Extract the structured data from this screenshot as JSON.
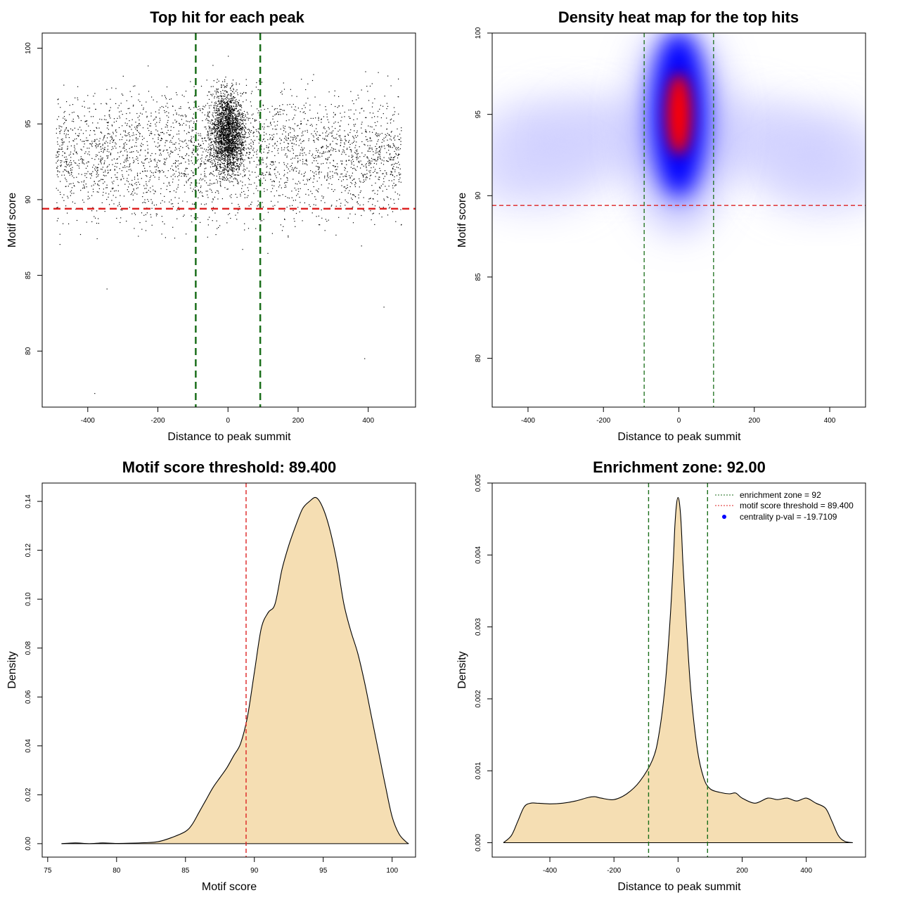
{
  "chart_data": [
    {
      "type": "scatter",
      "title": "Top hit for each peak",
      "xlabel": "Distance to peak summit",
      "ylabel": "Motif score",
      "xlim": [
        -530,
        535
      ],
      "ylim": [
        76.3,
        101.0
      ],
      "xticks": [
        -400,
        -200,
        0,
        200,
        400
      ],
      "yticks": [
        80,
        85,
        90,
        95,
        100
      ],
      "xtick_labels": [
        "-400",
        "-200",
        "0",
        "200",
        "400"
      ],
      "ytick_labels": [
        "80",
        "85",
        "90",
        "95",
        "100"
      ],
      "hlines": [
        {
          "y": 89.4,
          "color": "#dd2222",
          "style": "dashed"
        }
      ],
      "vlines": [
        {
          "x": -92,
          "color": "#1a6e1a",
          "style": "dashed"
        },
        {
          "x": 92,
          "color": "#1a6e1a",
          "style": "dashed"
        }
      ],
      "points_summary": {
        "x_range": [
          -490,
          495
        ],
        "score_range": [
          77.2,
          100
        ],
        "central_band": [
          -92,
          92
        ],
        "mode_score": 94.5,
        "outliers": [
          {
            "x": -380,
            "y": 77.2
          },
          {
            "x": 390,
            "y": 79.5
          },
          {
            "x": 445,
            "y": 82.9
          },
          {
            "x": -345,
            "y": 84.1
          }
        ]
      }
    },
    {
      "type": "heatmap",
      "title": "Density heat map for the top hits",
      "xlabel": "Distance to peak summit",
      "ylabel": "Motif score",
      "xlim": [
        -495,
        495
      ],
      "ylim": [
        77.0,
        100.0
      ],
      "xticks": [
        -400,
        -200,
        0,
        200,
        400
      ],
      "yticks": [
        80,
        85,
        90,
        95,
        100
      ],
      "xtick_labels": [
        "-400",
        "-200",
        "0",
        "200",
        "400"
      ],
      "ytick_labels": [
        "80",
        "85",
        "90",
        "95",
        "100"
      ],
      "hlines": [
        {
          "y": 89.4,
          "color": "#dd2222",
          "style": "dashed"
        }
      ],
      "vlines": [
        {
          "x": -92,
          "color": "#1a6e1a",
          "style": "dashed"
        },
        {
          "x": 92,
          "color": "#1a6e1a",
          "style": "dashed"
        }
      ],
      "colors": [
        "#ffffff",
        "#0000ff",
        "#ff0000"
      ],
      "peak": {
        "x": 0,
        "y": 95.0
      }
    },
    {
      "type": "area",
      "title": "Motif score threshold: 89.400",
      "xlabel": "Motif score",
      "ylabel": "Density",
      "xlim": [
        74.6,
        101.7
      ],
      "ylim": [
        -0.0055,
        0.1475
      ],
      "xticks": [
        75,
        80,
        85,
        90,
        95,
        100
      ],
      "yticks": [
        0.0,
        0.02,
        0.04,
        0.06,
        0.08,
        0.1,
        0.12,
        0.14
      ],
      "xtick_labels": [
        "75",
        "80",
        "85",
        "90",
        "95",
        "100"
      ],
      "ytick_labels": [
        "0.00",
        "0.02",
        "0.04",
        "0.06",
        "0.08",
        "0.10",
        "0.12",
        "0.14"
      ],
      "fill": "#f5deb3",
      "vlines": [
        {
          "x": 89.4,
          "color": "#dd2222",
          "style": "dashed"
        }
      ],
      "x": [
        76,
        77,
        78,
        79,
        80,
        81,
        82,
        83,
        84,
        85,
        85.5,
        86,
        86.5,
        87,
        87.5,
        88,
        88.5,
        89,
        89.5,
        90,
        90.5,
        91,
        91.5,
        92,
        92.5,
        93,
        93.5,
        94,
        94.5,
        95,
        95.5,
        96,
        96.5,
        97,
        97.5,
        98,
        98.5,
        99,
        99.5,
        100,
        100.5,
        101,
        101.2
      ],
      "y": [
        0.0,
        0.0003,
        0.0,
        0.0003,
        0.0001,
        0.0002,
        0.0004,
        0.0008,
        0.0025,
        0.005,
        0.008,
        0.013,
        0.018,
        0.023,
        0.027,
        0.031,
        0.036,
        0.041,
        0.052,
        0.07,
        0.088,
        0.0945,
        0.098,
        0.112,
        0.122,
        0.13,
        0.137,
        0.14,
        0.1415,
        0.137,
        0.128,
        0.115,
        0.098,
        0.087,
        0.078,
        0.066,
        0.052,
        0.038,
        0.024,
        0.011,
        0.004,
        0.0008,
        0.0
      ]
    },
    {
      "type": "area",
      "title": "Enrichment zone: 92.00",
      "xlabel": "Distance to peak summit",
      "ylabel": "Density",
      "xlim": [
        -580,
        585
      ],
      "ylim": [
        -0.0002,
        0.005
      ],
      "xticks": [
        -400,
        -200,
        0,
        200,
        400
      ],
      "yticks": [
        0.0,
        0.001,
        0.002,
        0.003,
        0.004,
        0.005
      ],
      "xtick_labels": [
        "-400",
        "-200",
        "0",
        "200",
        "400"
      ],
      "ytick_labels": [
        "0.000",
        "0.001",
        "0.002",
        "0.003",
        "0.004",
        "0.005"
      ],
      "fill": "#f5deb3",
      "vlines": [
        {
          "x": -92,
          "color": "#1a6e1a",
          "style": "dashed"
        },
        {
          "x": 92,
          "color": "#1a6e1a",
          "style": "dashed"
        }
      ],
      "legend": {
        "position": "top-right",
        "entries": [
          {
            "label": "enrichment zone = 92",
            "color": "#1a6e1a",
            "marker": "dotted-line"
          },
          {
            "label": "motif score threshold = 89.400",
            "color": "#dd2222",
            "marker": "dotted-line"
          },
          {
            "label": "centrality p-val = -19.7109",
            "color": "#0000ff",
            "marker": "dot"
          }
        ]
      },
      "x": [
        -545,
        -520,
        -500,
        -480,
        -460,
        -440,
        -400,
        -360,
        -320,
        -280,
        -260,
        -240,
        -200,
        -160,
        -120,
        -80,
        -60,
        -40,
        -25,
        -15,
        -10,
        -5,
        0,
        5,
        10,
        15,
        25,
        40,
        60,
        80,
        100,
        130,
        160,
        180,
        200,
        240,
        280,
        310,
        340,
        370,
        400,
        430,
        460,
        480,
        500,
        520,
        545
      ],
      "y": [
        0.0,
        0.0001,
        0.0003,
        0.0005,
        0.00055,
        0.00055,
        0.00054,
        0.00055,
        0.00058,
        0.00063,
        0.00064,
        0.00062,
        0.0006,
        0.00068,
        0.00085,
        0.00115,
        0.0015,
        0.0022,
        0.0031,
        0.0039,
        0.0044,
        0.0047,
        0.0048,
        0.0047,
        0.0044,
        0.0039,
        0.0031,
        0.0021,
        0.0013,
        0.0009,
        0.00075,
        0.0007,
        0.00068,
        0.00069,
        0.00062,
        0.00055,
        0.00062,
        0.0006,
        0.00062,
        0.00058,
        0.00062,
        0.00055,
        0.00048,
        0.0003,
        0.0001,
        2e-05,
        0.0
      ]
    }
  ]
}
